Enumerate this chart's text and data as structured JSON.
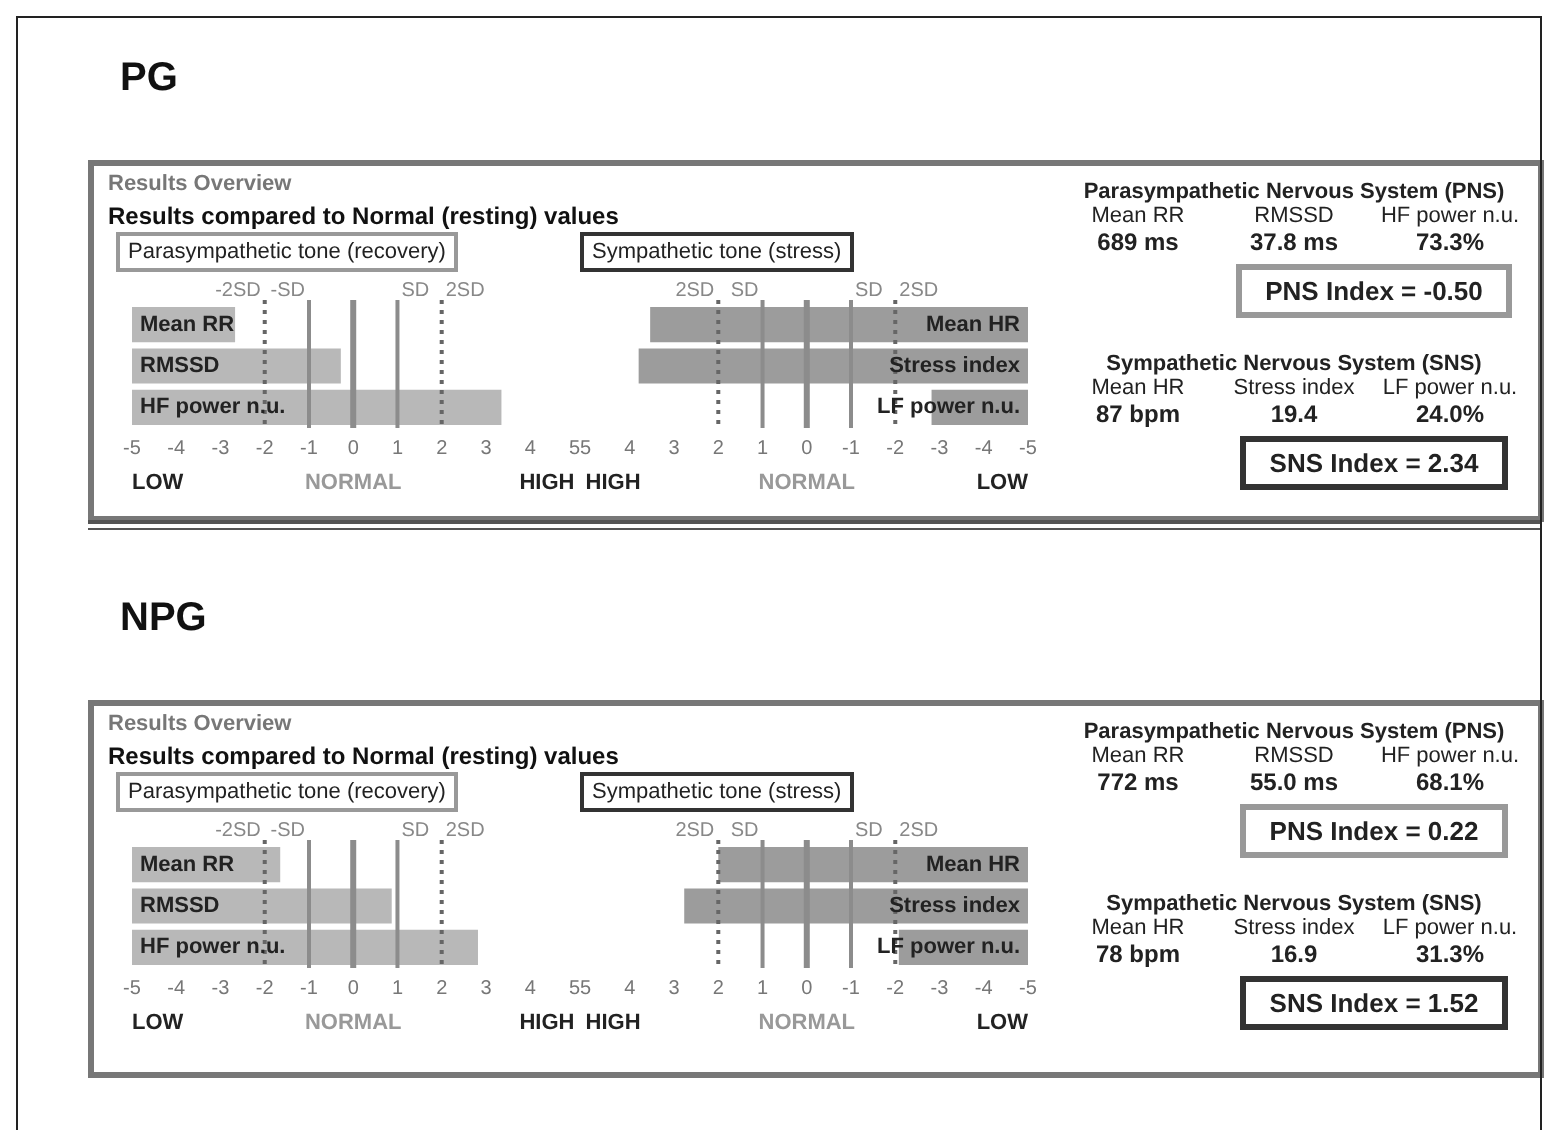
{
  "chart_data": [
    {
      "type": "other",
      "title": "PG",
      "annotations": [
        "Results Overview",
        "Results compared to Normal (resting) values"
      ]
    },
    {
      "type": "bar",
      "orientation": "horizontal",
      "title": "Parasympathetic tone (recovery)",
      "categories": [
        "Mean RR",
        "RMSSD",
        "HF power n.u."
      ],
      "base": [
        -5,
        -5,
        -5
      ],
      "values": [
        2.33,
        4.72,
        8.35
      ],
      "color": "#b8b8b8",
      "xlim": [
        -5,
        5
      ],
      "xticks": [
        -5,
        -4,
        -3,
        -2,
        -1,
        0,
        1,
        2,
        3,
        4,
        5
      ],
      "ref_lines": [
        {
          "axis": "x",
          "value": -2,
          "label": "-2SD",
          "line_style": "dotted",
          "color": "#666666"
        },
        {
          "axis": "x",
          "value": -1,
          "label": "-SD",
          "line_style": "solid",
          "color": "#8c8c8c"
        },
        {
          "axis": "x",
          "value": 0,
          "line_style": "solid",
          "color": "#8c8c8c"
        },
        {
          "axis": "x",
          "value": 1,
          "label": "SD",
          "line_style": "solid",
          "color": "#8c8c8c"
        },
        {
          "axis": "x",
          "value": 2,
          "label": "2SD",
          "line_style": "dotted",
          "color": "#666666"
        }
      ],
      "annotations": [
        "LOW",
        "NORMAL",
        "HIGH"
      ],
      "legend": false
    },
    {
      "type": "bar",
      "orientation": "horizontal",
      "title": "Sympathetic tone (stress)",
      "categories": [
        "Mean HR",
        "Stress index",
        "LF power n.u."
      ],
      "base": [
        -5,
        -5,
        -5
      ],
      "values": [
        8.54,
        8.8,
        2.18
      ],
      "color": "#9c9c9c",
      "xlim": [
        5,
        -5
      ],
      "xticks": [
        5,
        4,
        3,
        2,
        1,
        0,
        -1,
        -2,
        -3,
        -4,
        -5
      ],
      "ref_lines": [
        {
          "axis": "x",
          "value": 2,
          "label": "2SD",
          "line_style": "dotted",
          "color": "#666666"
        },
        {
          "axis": "x",
          "value": 1,
          "label": "SD",
          "line_style": "solid",
          "color": "#8c8c8c"
        },
        {
          "axis": "x",
          "value": 0,
          "line_style": "solid",
          "color": "#8c8c8c"
        },
        {
          "axis": "x",
          "value": -1,
          "label": "SD",
          "line_style": "solid",
          "color": "#8c8c8c"
        },
        {
          "axis": "x",
          "value": -2,
          "label": "2SD",
          "line_style": "dotted",
          "color": "#666666"
        }
      ],
      "annotations": [
        "HIGH",
        "NORMAL",
        "LOW"
      ],
      "legend": false
    },
    {
      "type": "other",
      "title": "Parasympathetic Nervous System (PNS)",
      "categories": [
        "Mean RR",
        "RMSSD",
        "HF power n.u."
      ],
      "value_labels": [
        "689 ms",
        "37.8 ms",
        "73.3%"
      ],
      "annotations": [
        "PNS Index = -0.50"
      ]
    },
    {
      "type": "other",
      "title": "Sympathetic Nervous System (SNS)",
      "categories": [
        "Mean HR",
        "Stress index",
        "LF power n.u."
      ],
      "value_labels": [
        "87 bpm",
        "19.4",
        "24.0%"
      ],
      "annotations": [
        "SNS Index = 2.34"
      ]
    },
    {
      "type": "other",
      "title": "NPG",
      "annotations": [
        "Results Overview",
        "Results compared to Normal (resting) values"
      ]
    },
    {
      "type": "bar",
      "orientation": "horizontal",
      "title": "Parasympathetic tone (recovery)",
      "categories": [
        "Mean RR",
        "RMSSD",
        "HF power n.u."
      ],
      "base": [
        -5,
        -5,
        -5
      ],
      "values": [
        3.35,
        5.87,
        7.82
      ],
      "color": "#b8b8b8",
      "xlim": [
        -5,
        5
      ],
      "xticks": [
        -5,
        -4,
        -3,
        -2,
        -1,
        0,
        1,
        2,
        3,
        4,
        5
      ],
      "ref_lines": [
        {
          "axis": "x",
          "value": -2,
          "label": "-2SD",
          "line_style": "dotted",
          "color": "#666666"
        },
        {
          "axis": "x",
          "value": -1,
          "label": "-SD",
          "line_style": "solid",
          "color": "#8c8c8c"
        },
        {
          "axis": "x",
          "value": 0,
          "line_style": "solid",
          "color": "#8c8c8c"
        },
        {
          "axis": "x",
          "value": 1,
          "label": "SD",
          "line_style": "solid",
          "color": "#8c8c8c"
        },
        {
          "axis": "x",
          "value": 2,
          "label": "2SD",
          "line_style": "dotted",
          "color": "#666666"
        }
      ],
      "annotations": [
        "LOW",
        "NORMAL",
        "HIGH"
      ],
      "legend": false
    },
    {
      "type": "bar",
      "orientation": "horizontal",
      "title": "Sympathetic tone (stress)",
      "categories": [
        "Mean HR",
        "Stress index",
        "LF power n.u."
      ],
      "base": [
        -5,
        -5,
        -5
      ],
      "values": [
        7.0,
        7.77,
        2.92
      ],
      "color": "#9c9c9c",
      "xlim": [
        5,
        -5
      ],
      "xticks": [
        5,
        4,
        3,
        2,
        1,
        0,
        -1,
        -2,
        -3,
        -4,
        -5
      ],
      "ref_lines": [
        {
          "axis": "x",
          "value": 2,
          "label": "2SD",
          "line_style": "dotted",
          "color": "#666666"
        },
        {
          "axis": "x",
          "value": 1,
          "label": "SD",
          "line_style": "solid",
          "color": "#8c8c8c"
        },
        {
          "axis": "x",
          "value": 0,
          "line_style": "solid",
          "color": "#8c8c8c"
        },
        {
          "axis": "x",
          "value": -1,
          "label": "SD",
          "line_style": "solid",
          "color": "#8c8c8c"
        },
        {
          "axis": "x",
          "value": -2,
          "label": "2SD",
          "line_style": "dotted",
          "color": "#666666"
        }
      ],
      "annotations": [
        "HIGH",
        "NORMAL",
        "LOW"
      ],
      "legend": false
    },
    {
      "type": "other",
      "title": "Parasympathetic Nervous System (PNS)",
      "categories": [
        "Mean RR",
        "RMSSD",
        "HF power n.u."
      ],
      "value_labels": [
        "772 ms",
        "55.0 ms",
        "68.1%"
      ],
      "annotations": [
        "PNS Index = 0.22"
      ]
    },
    {
      "type": "other",
      "title": "Sympathetic Nervous System (SNS)",
      "categories": [
        "Mean HR",
        "Stress index",
        "LF power n.u."
      ],
      "value_labels": [
        "78 bpm",
        "16.9",
        "31.3%"
      ],
      "annotations": [
        "SNS Index = 1.52"
      ]
    }
  ]
}
